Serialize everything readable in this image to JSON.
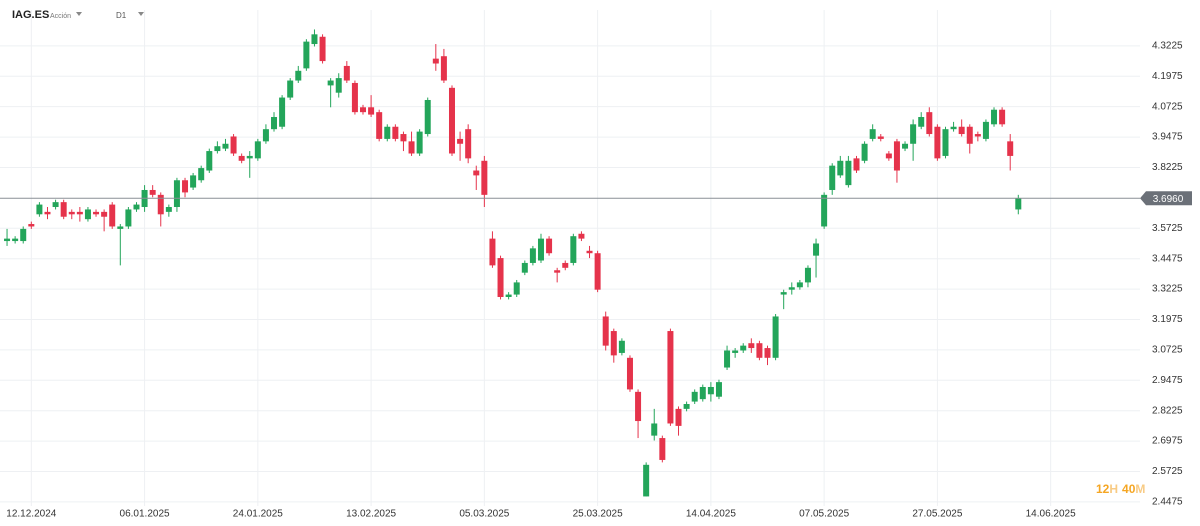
{
  "header": {
    "symbol": "IAG.ES",
    "instrument_type": "Acción",
    "timeframe": "D1"
  },
  "countdown": [
    "12",
    "H",
    "40",
    "M"
  ],
  "chart_data": {
    "type": "candlestick",
    "categories": [
      null,
      null,
      null,
      "12.12.2024",
      null,
      null,
      null,
      null,
      null,
      null,
      null,
      null,
      null,
      null,
      null,
      null,
      null,
      "06.01.2025",
      null,
      null,
      null,
      null,
      null,
      null,
      null,
      null,
      null,
      null,
      null,
      null,
      null,
      "24.01.2025",
      null,
      null,
      null,
      null,
      null,
      null,
      null,
      null,
      null,
      null,
      null,
      null,
      null,
      "13.02.2025",
      null,
      null,
      null,
      null,
      null,
      null,
      null,
      null,
      null,
      null,
      null,
      null,
      null,
      "05.03.2025",
      null,
      null,
      null,
      null,
      null,
      null,
      null,
      null,
      null,
      null,
      null,
      null,
      null,
      "25.03.2025",
      null,
      null,
      null,
      null,
      null,
      null,
      null,
      null,
      null,
      null,
      null,
      null,
      null,
      "14.04.2025",
      null,
      null,
      null,
      null,
      null,
      null,
      null,
      null,
      null,
      null,
      null,
      null,
      null,
      "07.05.2025",
      null,
      null,
      null,
      null,
      null,
      null,
      null,
      null,
      null,
      null,
      null,
      null,
      null,
      "27.05.2025",
      null,
      null,
      null,
      null,
      null,
      null,
      null,
      null,
      null,
      null,
      null,
      null,
      null,
      "14.06.2025"
    ],
    "open": [
      3.52,
      3.52,
      3.52,
      3.59,
      3.63,
      3.64,
      3.66,
      3.68,
      3.64,
      3.64,
      3.61,
      3.64,
      3.64,
      3.67,
      3.57,
      3.58,
      3.65,
      3.66,
      3.73,
      3.71,
      3.64,
      3.66,
      3.77,
      3.74,
      3.77,
      3.81,
      3.89,
      3.9,
      3.95,
      3.87,
      3.86,
      3.86,
      3.93,
      3.98,
      3.99,
      4.11,
      4.18,
      4.23,
      4.33,
      4.36,
      4.16,
      4.13,
      4.24,
      4.17,
      4.07,
      4.07,
      4.05,
      3.94,
      3.99,
      3.96,
      3.93,
      3.88,
      3.96,
      4.27,
      4.28,
      4.15,
      3.94,
      3.98,
      3.81,
      3.85,
      3.53,
      3.45,
      3.29,
      3.3,
      3.39,
      3.43,
      3.44,
      3.53,
      3.4,
      3.43,
      3.43,
      3.55,
      3.48,
      3.47,
      3.21,
      3.15,
      3.06,
      3.04,
      2.9,
      2.47,
      2.72,
      2.71,
      3.15,
      2.83,
      2.83,
      2.86,
      2.87,
      2.89,
      2.88,
      3.0,
      3.06,
      3.07,
      3.1,
      3.1,
      3.08,
      3.04,
      3.3,
      3.32,
      3.33,
      3.35,
      3.46,
      3.58,
      3.73,
      3.79,
      3.75,
      3.86,
      3.85,
      3.94,
      3.95,
      3.88,
      3.93,
      3.9,
      3.92,
      3.99,
      4.05,
      3.99,
      3.87,
      3.98,
      3.99,
      3.99,
      3.96,
      3.94,
      4.0,
      4.06,
      3.93,
      3.65,
      null,
      null,
      null,
      null
    ],
    "high": [
      3.57,
      3.54,
      3.58,
      3.6,
      3.68,
      3.66,
      3.69,
      3.69,
      3.65,
      3.66,
      3.66,
      3.65,
      3.65,
      3.68,
      3.59,
      3.66,
      3.68,
      3.75,
      3.75,
      3.72,
      3.67,
      3.78,
      3.78,
      3.8,
      3.83,
      3.9,
      3.93,
      3.94,
      3.96,
      3.88,
      3.89,
      3.94,
      4.0,
      4.05,
      4.12,
      4.19,
      4.24,
      4.35,
      4.39,
      4.37,
      4.19,
      4.21,
      4.26,
      4.18,
      4.08,
      4.12,
      4.06,
      4.0,
      4.0,
      3.97,
      3.97,
      3.98,
      4.11,
      4.33,
      4.31,
      4.16,
      3.97,
      4.0,
      3.83,
      3.87,
      3.56,
      3.46,
      3.31,
      3.36,
      3.44,
      3.5,
      3.55,
      3.54,
      3.41,
      3.44,
      3.55,
      3.56,
      3.5,
      3.48,
      3.23,
      3.16,
      3.12,
      3.05,
      2.91,
      2.61,
      2.83,
      2.72,
      3.16,
      2.84,
      2.86,
      2.91,
      2.93,
      2.94,
      2.95,
      3.09,
      3.08,
      3.1,
      3.12,
      3.11,
      3.09,
      3.22,
      3.32,
      3.35,
      3.36,
      3.42,
      3.53,
      3.72,
      3.84,
      3.87,
      3.87,
      3.87,
      3.93,
      4.0,
      3.96,
      3.89,
      3.94,
      3.93,
      4.02,
      4.05,
      4.07,
      4.0,
      3.99,
      4.01,
      4.02,
      4.0,
      3.97,
      4.02,
      4.07,
      4.07,
      3.96,
      3.71,
      null,
      null,
      null,
      null
    ],
    "low": [
      3.5,
      3.51,
      3.51,
      3.57,
      3.62,
      3.61,
      3.65,
      3.61,
      3.61,
      3.6,
      3.6,
      3.62,
      3.56,
      3.57,
      3.42,
      3.57,
      3.64,
      3.64,
      3.7,
      3.58,
      3.62,
      3.64,
      3.7,
      3.73,
      3.76,
      3.8,
      3.88,
      3.89,
      3.87,
      3.84,
      3.78,
      3.85,
      3.92,
      3.97,
      3.98,
      4.1,
      4.17,
      4.22,
      4.32,
      4.25,
      4.07,
      4.11,
      4.17,
      4.04,
      4.04,
      4.03,
      3.93,
      3.93,
      3.93,
      3.89,
      3.87,
      3.87,
      3.95,
      4.22,
      4.17,
      3.87,
      3.85,
      3.84,
      3.73,
      3.66,
      3.41,
      3.28,
      3.28,
      3.29,
      3.38,
      3.42,
      3.43,
      3.46,
      3.35,
      3.4,
      3.42,
      3.52,
      3.45,
      3.31,
      3.07,
      3.02,
      3.05,
      2.9,
      2.71,
      2.47,
      2.7,
      2.61,
      2.76,
      2.72,
      2.82,
      2.85,
      2.86,
      2.86,
      2.87,
      2.99,
      3.04,
      3.06,
      3.06,
      3.03,
      3.01,
      3.03,
      3.24,
      3.3,
      3.32,
      3.33,
      3.37,
      3.57,
      3.71,
      3.78,
      3.74,
      3.8,
      3.84,
      3.93,
      3.93,
      3.85,
      3.76,
      3.89,
      3.85,
      3.98,
      3.95,
      3.85,
      3.86,
      3.97,
      3.95,
      3.88,
      3.93,
      3.93,
      3.99,
      3.99,
      3.81,
      3.63,
      null,
      null,
      null,
      null
    ],
    "close": [
      3.53,
      3.53,
      3.57,
      3.58,
      3.67,
      3.63,
      3.68,
      3.62,
      3.63,
      3.63,
      3.65,
      3.63,
      3.62,
      3.58,
      3.58,
      3.65,
      3.67,
      3.73,
      3.71,
      3.63,
      3.66,
      3.77,
      3.72,
      3.79,
      3.82,
      3.89,
      3.91,
      3.92,
      3.88,
      3.85,
      3.87,
      3.93,
      3.98,
      4.03,
      4.11,
      4.18,
      4.22,
      4.34,
      4.37,
      4.26,
      4.18,
      4.19,
      4.18,
      4.05,
      4.05,
      4.04,
      3.94,
      3.99,
      3.94,
      3.93,
      3.88,
      3.97,
      4.1,
      4.25,
      4.18,
      3.88,
      3.92,
      3.86,
      3.79,
      3.71,
      3.42,
      3.29,
      3.3,
      3.35,
      3.43,
      3.49,
      3.53,
      3.47,
      3.39,
      3.41,
      3.54,
      3.53,
      3.47,
      3.32,
      3.09,
      3.05,
      3.11,
      2.91,
      2.78,
      2.6,
      2.77,
      2.62,
      2.77,
      2.76,
      2.85,
      2.9,
      2.92,
      2.92,
      2.94,
      3.07,
      3.07,
      3.09,
      3.08,
      3.04,
      3.04,
      3.21,
      3.31,
      3.33,
      3.35,
      3.41,
      3.51,
      3.71,
      3.83,
      3.85,
      3.85,
      3.81,
      3.92,
      3.98,
      3.94,
      3.86,
      3.81,
      3.92,
      4.0,
      4.03,
      3.96,
      3.86,
      3.98,
      3.99,
      3.96,
      3.92,
      3.95,
      4.01,
      4.06,
      4.0,
      3.87,
      3.696,
      null,
      null,
      null,
      null
    ],
    "up_color": "#23a55a",
    "down_color": "#e5334b",
    "ylim": [
      2.406,
      4.47
    ],
    "yticks": [
      4.3225,
      4.1975,
      4.0725,
      3.9475,
      3.8225,
      3.5725,
      3.4475,
      3.3225,
      3.1975,
      3.0725,
      2.9475,
      2.8225,
      2.6975,
      2.5725,
      2.4475
    ],
    "price_line": {
      "value": 3.696,
      "label": "3.6960"
    },
    "grid": true
  }
}
